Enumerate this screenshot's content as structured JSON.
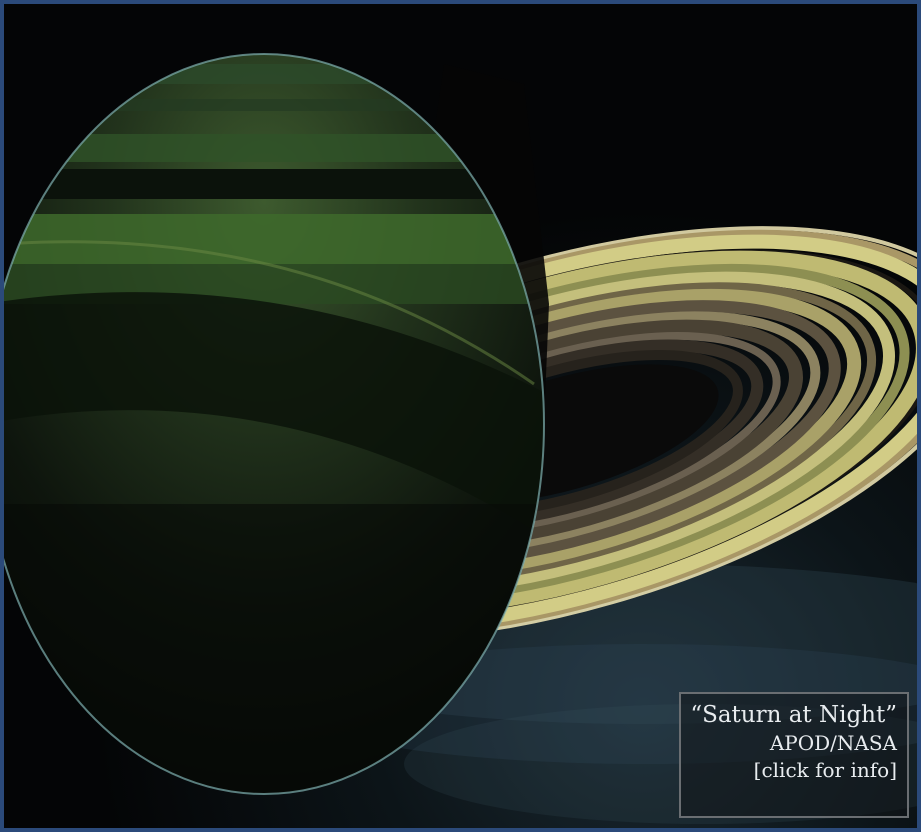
{
  "caption": {
    "title": "“Saturn at Night”",
    "credit": "APOD/NASA",
    "info_link": "[click for info]"
  },
  "colors": {
    "frame_border": "#2b4a7a",
    "space": "#050607",
    "ring_bright": "#d8d48a",
    "planet_green": "#3a5a2a"
  }
}
